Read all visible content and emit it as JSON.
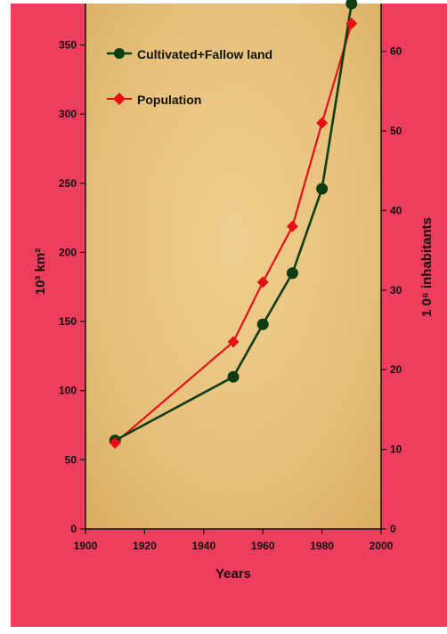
{
  "colors": {
    "background": "#ee3d5d",
    "plot_fill": "#e6c07a",
    "land_series": "#0f3d12",
    "population_series": "#e60f18",
    "axis_text": "#111111"
  },
  "chart_data": {
    "type": "line",
    "xlabel": "Years",
    "ylabel_left": "10³ km²",
    "ylabel_right": "1 0⁶ inhabitants",
    "xlim": [
      1900,
      2000
    ],
    "ylim_left": [
      0,
      380
    ],
    "ylim_right": [
      0,
      66
    ],
    "x_ticks": [
      1900,
      1920,
      1940,
      1960,
      1980,
      2000
    ],
    "y_ticks_left": [
      0,
      50,
      100,
      150,
      200,
      250,
      300,
      350
    ],
    "y_ticks_right": [
      0,
      10,
      20,
      30,
      40,
      50,
      60
    ],
    "grid": false,
    "legend_position": "top-left",
    "series": [
      {
        "name": "Cultivated+Fallow land",
        "axis": "left",
        "marker": "circle",
        "x": [
          1910,
          1950,
          1960,
          1970,
          1980,
          1990
        ],
        "y": [
          64,
          110,
          148,
          185,
          246,
          380
        ]
      },
      {
        "name": "Population",
        "axis": "right",
        "marker": "diamond",
        "x": [
          1910,
          1950,
          1960,
          1970,
          1980,
          1990
        ],
        "y": [
          10.8,
          23.5,
          31,
          38,
          51,
          63.5
        ]
      }
    ]
  }
}
